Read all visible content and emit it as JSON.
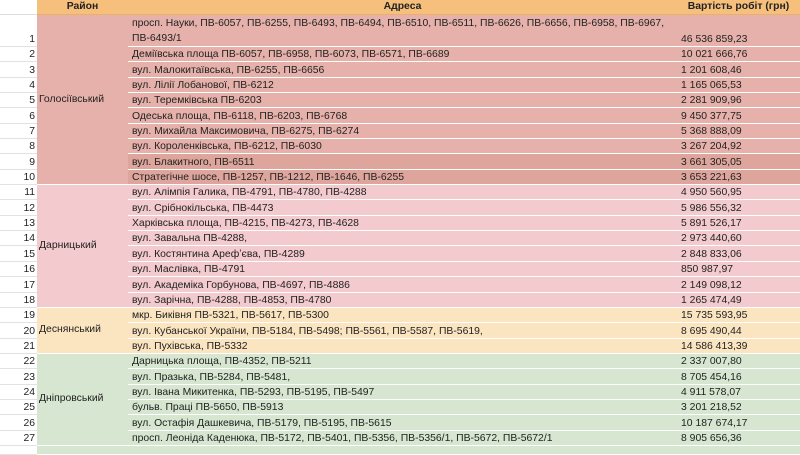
{
  "header": {
    "district": "Район",
    "address": "Адреса",
    "cost": "Вартість робіт (грн)"
  },
  "colors": {
    "header": "#f6c07c",
    "Голосіївський": "#e6b1aa",
    "Голосіївський_dark": "#dea59c",
    "Дарницький": "#f3cacd",
    "Деснянський": "#fbe5c0",
    "Дніпровський": "#d6e6d0"
  },
  "groups": [
    {
      "district": "Голосіївський",
      "color": "#e6b1aa",
      "rows": [
        {
          "n": "1",
          "address": "просп. Науки, ПВ-6057, ПВ-6255, ПВ-6493, ПВ-6494, ПВ-6510, ПВ-6511, ПВ-6626, ПВ-6656, ПВ-6958, ПВ-6967, ПВ-6493/1",
          "cost": "46 536 859,23"
        },
        {
          "n": "2",
          "address": "Деміївська площа ПВ-6057, ПВ-6958, ПВ-6073, ПВ-6571, ПВ-6689",
          "cost": "10 021 666,76"
        },
        {
          "n": "3",
          "address": "вул. Малокитаївська, ПВ-6255, ПВ-6656",
          "cost": "1 201 608,46"
        },
        {
          "n": "4",
          "address": "вул. Лілії Лобанової, ПВ-6212",
          "cost": "1 165 065,53"
        },
        {
          "n": "5",
          "address": "вул. Теремківська ПВ-6203",
          "cost": "2 281 909,96"
        },
        {
          "n": "6",
          "address": "Одеська площа, ПВ-6118, ПВ-6203, ПВ-6768",
          "cost": "9 450 377,75"
        },
        {
          "n": "7",
          "address": "вул. Михайла Максимовича, ПВ-6275, ПВ-6274",
          "cost": "5 368 888,09"
        },
        {
          "n": "8",
          "address": "вул. Короленківська, ПВ-6212, ПВ-6030",
          "cost": "3 267 204,92"
        },
        {
          "n": "9",
          "address": "вул. Блакитного, ПВ-6511",
          "cost": "3 661 305,05"
        },
        {
          "n": "10",
          "address": "Стратегічне шосе, ПВ-1257, ПВ-1212, ПВ-1646, ПВ-6255",
          "cost": "3 653 221,63"
        }
      ]
    },
    {
      "district": "Дарницький",
      "color": "#f3cacd",
      "rows": [
        {
          "n": "11",
          "address": "вул. Алімпія Галика, ПВ-4791, ПВ-4780, ПВ-4288",
          "cost": "4 950 560,95"
        },
        {
          "n": "12",
          "address": "вул. Срібнокільська, ПВ-4473",
          "cost": "5 986 556,32"
        },
        {
          "n": "13",
          "address": "Харківська площа, ПВ-4215, ПВ-4273, ПВ-4628",
          "cost": "5 891 526,17"
        },
        {
          "n": "14",
          "address": "вул. Завальна ПВ-4288,",
          "cost": "2 973 440,60"
        },
        {
          "n": "15",
          "address": "вул. Костянтина Арефʼєва, ПВ-4289",
          "cost": "2 848 833,06"
        },
        {
          "n": "16",
          "address": "вул. Маслівка, ПВ-4791",
          "cost": "850 987,97"
        },
        {
          "n": "17",
          "address": "вул. Академіка Горбунова, ПВ-4697, ПВ-4886",
          "cost": "2 149 098,12"
        },
        {
          "n": "18",
          "address": "вул. Зарічна, ПВ-4288, ПВ-4853, ПВ-4780",
          "cost": "1 265 474,49"
        }
      ]
    },
    {
      "district": "Деснянський",
      "color": "#fbe5c0",
      "rows": [
        {
          "n": "19",
          "address": "мкр. Биківня ПВ-5321, ПВ-5617, ПВ-5300",
          "cost": "15 735 593,95"
        },
        {
          "n": "20",
          "address": "вул. Кубанської України, ПВ-5184, ПВ-5498; ПВ-5561, ПВ-5587, ПВ-5619,",
          "cost": "8 695 490,44"
        },
        {
          "n": "21",
          "address": "вул. Пухівська, ПВ-5332",
          "cost": "14 586 413,39"
        }
      ]
    },
    {
      "district": "Дніпровський",
      "color": "#d6e6d0",
      "rows": [
        {
          "n": "22",
          "address": "Дарницька площа, ПВ-4352, ПВ-5211",
          "cost": "2 337 007,80"
        },
        {
          "n": "23",
          "address": "вул. Празька, ПВ-5284, ПВ-5481,",
          "cost": "8 705 454,16"
        },
        {
          "n": "24",
          "address": "вул. Івана Микитенка, ПВ-5293, ПВ-5195, ПВ-5497",
          "cost": "4 911 578,07"
        },
        {
          "n": "25",
          "address": "бульв. Праці ПВ-5650, ПВ-5913",
          "cost": "3 201 218,52"
        },
        {
          "n": "26",
          "address": " вул. Остафія Дашкевича, ПВ-5179, ПВ-5195, ПВ-5615",
          "cost": "10 187 674,17"
        },
        {
          "n": "27",
          "address": "просп. Леоніда Каденюка, ПВ-5172, ПВ-5401, ПВ-5356, ПВ-5356/1, ПВ-5672, ПВ-5672/1",
          "cost": "8 905 656,36"
        }
      ]
    }
  ]
}
